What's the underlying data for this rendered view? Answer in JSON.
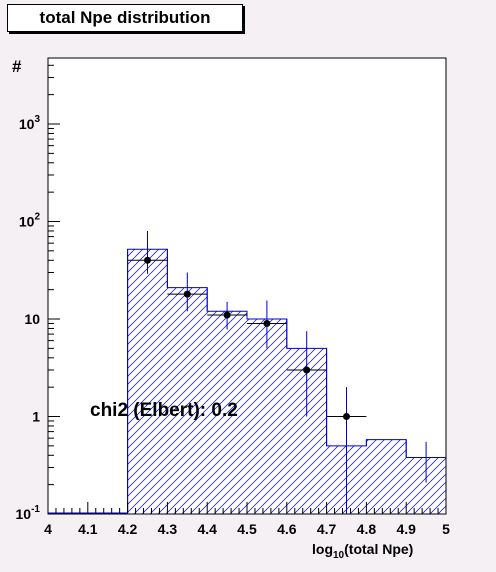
{
  "chart_data": {
    "type": "histogram",
    "title": "total Npe distribution",
    "ylabel": "#",
    "xlabel_main": "log",
    "xlabel_sub": "10",
    "xlabel_rest": "(total Npe)",
    "xlim": [
      4.0,
      5.0
    ],
    "ylim": [
      0.1,
      5000
    ],
    "yscale": "log",
    "x_ticks": [
      "4",
      "4.1",
      "4.2",
      "4.3",
      "4.4",
      "4.5",
      "4.6",
      "4.7",
      "4.8",
      "4.9",
      "5"
    ],
    "y_ticks": [
      {
        "value": 0.1,
        "base": "10",
        "exp": "-1"
      },
      {
        "value": 1,
        "base": "1",
        "exp": ""
      },
      {
        "value": 10,
        "base": "10",
        "exp": ""
      },
      {
        "value": 100,
        "base": "10",
        "exp": "2"
      },
      {
        "value": 1000,
        "base": "10",
        "exp": "3"
      }
    ],
    "histogram": {
      "bin_edges": [
        4.0,
        4.1,
        4.2,
        4.3,
        4.4,
        4.5,
        4.6,
        4.7,
        4.8,
        4.9,
        5.0
      ],
      "values": [
        0.1,
        0.1,
        52,
        21,
        12,
        10,
        5,
        0.5,
        0.58,
        0.38
      ],
      "bin_errors": [
        0.0,
        0.0,
        0.0,
        0.0,
        0.0,
        0.0,
        0.0,
        0.0,
        0.0,
        0.17
      ],
      "color": "#0000cc"
    },
    "data_points": [
      {
        "x": 4.25,
        "y": 40,
        "y_low": 29,
        "y_high": 80
      },
      {
        "x": 4.35,
        "y": 18,
        "y_low": 12,
        "y_high": 30
      },
      {
        "x": 4.45,
        "y": 11,
        "y_low": 7.8,
        "y_high": 15
      },
      {
        "x": 4.55,
        "y": 9,
        "y_low": 5,
        "y_high": 15.5
      },
      {
        "x": 4.65,
        "y": 3,
        "y_low": 1,
        "y_high": 7.5
      },
      {
        "x": 4.75,
        "y": 1,
        "y_low": 0.1,
        "y_high": 2
      }
    ],
    "annotation": "chi2 (Elbert): 0.2"
  }
}
